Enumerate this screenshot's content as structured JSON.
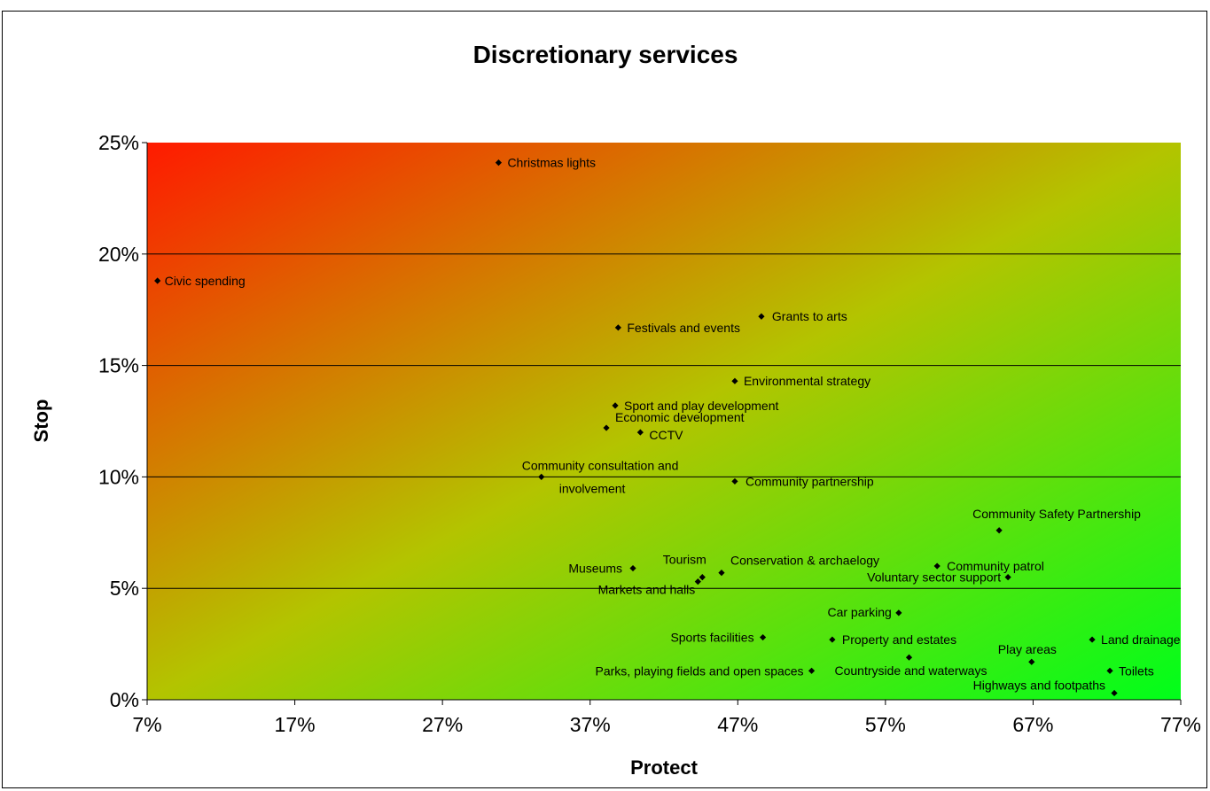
{
  "chart_data": {
    "type": "scatter",
    "title": "Discretionary services",
    "xlabel": "Protect",
    "ylabel": "Stop",
    "xlim": [
      7,
      77
    ],
    "ylim": [
      0,
      25
    ],
    "x_ticks": [
      "7%",
      "17%",
      "27%",
      "37%",
      "47%",
      "57%",
      "67%",
      "77%"
    ],
    "y_ticks": [
      "0%",
      "5%",
      "10%",
      "15%",
      "20%",
      "25%"
    ],
    "grid": "horizontal",
    "background_gradient": {
      "top_left": "#ff1a00",
      "bottom_right": "#00ff1a"
    },
    "points": [
      {
        "label": "Christmas lights",
        "x": 30.8,
        "y": 24.1
      },
      {
        "label": "Civic spending",
        "x": 7.7,
        "y": 18.8
      },
      {
        "label": "Grants to arts",
        "x": 48.6,
        "y": 17.2
      },
      {
        "label": "Festivals and events",
        "x": 38.9,
        "y": 16.7
      },
      {
        "label": "Environmental strategy",
        "x": 46.8,
        "y": 14.3
      },
      {
        "label": "Sport and play development",
        "x": 38.7,
        "y": 13.2
      },
      {
        "label": "Economic development",
        "x": 38.1,
        "y": 12.2
      },
      {
        "label": "CCTV",
        "x": 40.4,
        "y": 12.0
      },
      {
        "label": "Community consultation and involvement",
        "x": 33.7,
        "y": 10.0
      },
      {
        "label": "Community partnership",
        "x": 46.8,
        "y": 9.8
      },
      {
        "label": "Community Safety Partnership",
        "x": 64.7,
        "y": 7.6
      },
      {
        "label": "Museums",
        "x": 39.9,
        "y": 5.9
      },
      {
        "label": "Community patrol",
        "x": 60.5,
        "y": 6.0
      },
      {
        "label": "Conservation & archaelogy",
        "x": 45.9,
        "y": 5.7
      },
      {
        "label": "Tourism",
        "x": 44.6,
        "y": 5.5
      },
      {
        "label": "Markets and halls",
        "x": 44.3,
        "y": 5.3
      },
      {
        "label": "Voluntary sector support",
        "x": 65.3,
        "y": 5.5
      },
      {
        "label": "Car parking",
        "x": 57.9,
        "y": 3.9
      },
      {
        "label": "Sports facilities",
        "x": 48.7,
        "y": 2.8
      },
      {
        "label": "Property and estates",
        "x": 53.4,
        "y": 2.7
      },
      {
        "label": "Land drainage",
        "x": 71.0,
        "y": 2.7
      },
      {
        "label": "Play areas",
        "x": 66.9,
        "y": 1.7
      },
      {
        "label": "Countryside and waterways",
        "x": 58.6,
        "y": 1.9
      },
      {
        "label": "Parks, playing fields and open spaces",
        "x": 52.0,
        "y": 1.3
      },
      {
        "label": "Toilets",
        "x": 72.2,
        "y": 1.3
      },
      {
        "label": "Highways and footpaths",
        "x": 72.5,
        "y": 0.3
      }
    ]
  }
}
